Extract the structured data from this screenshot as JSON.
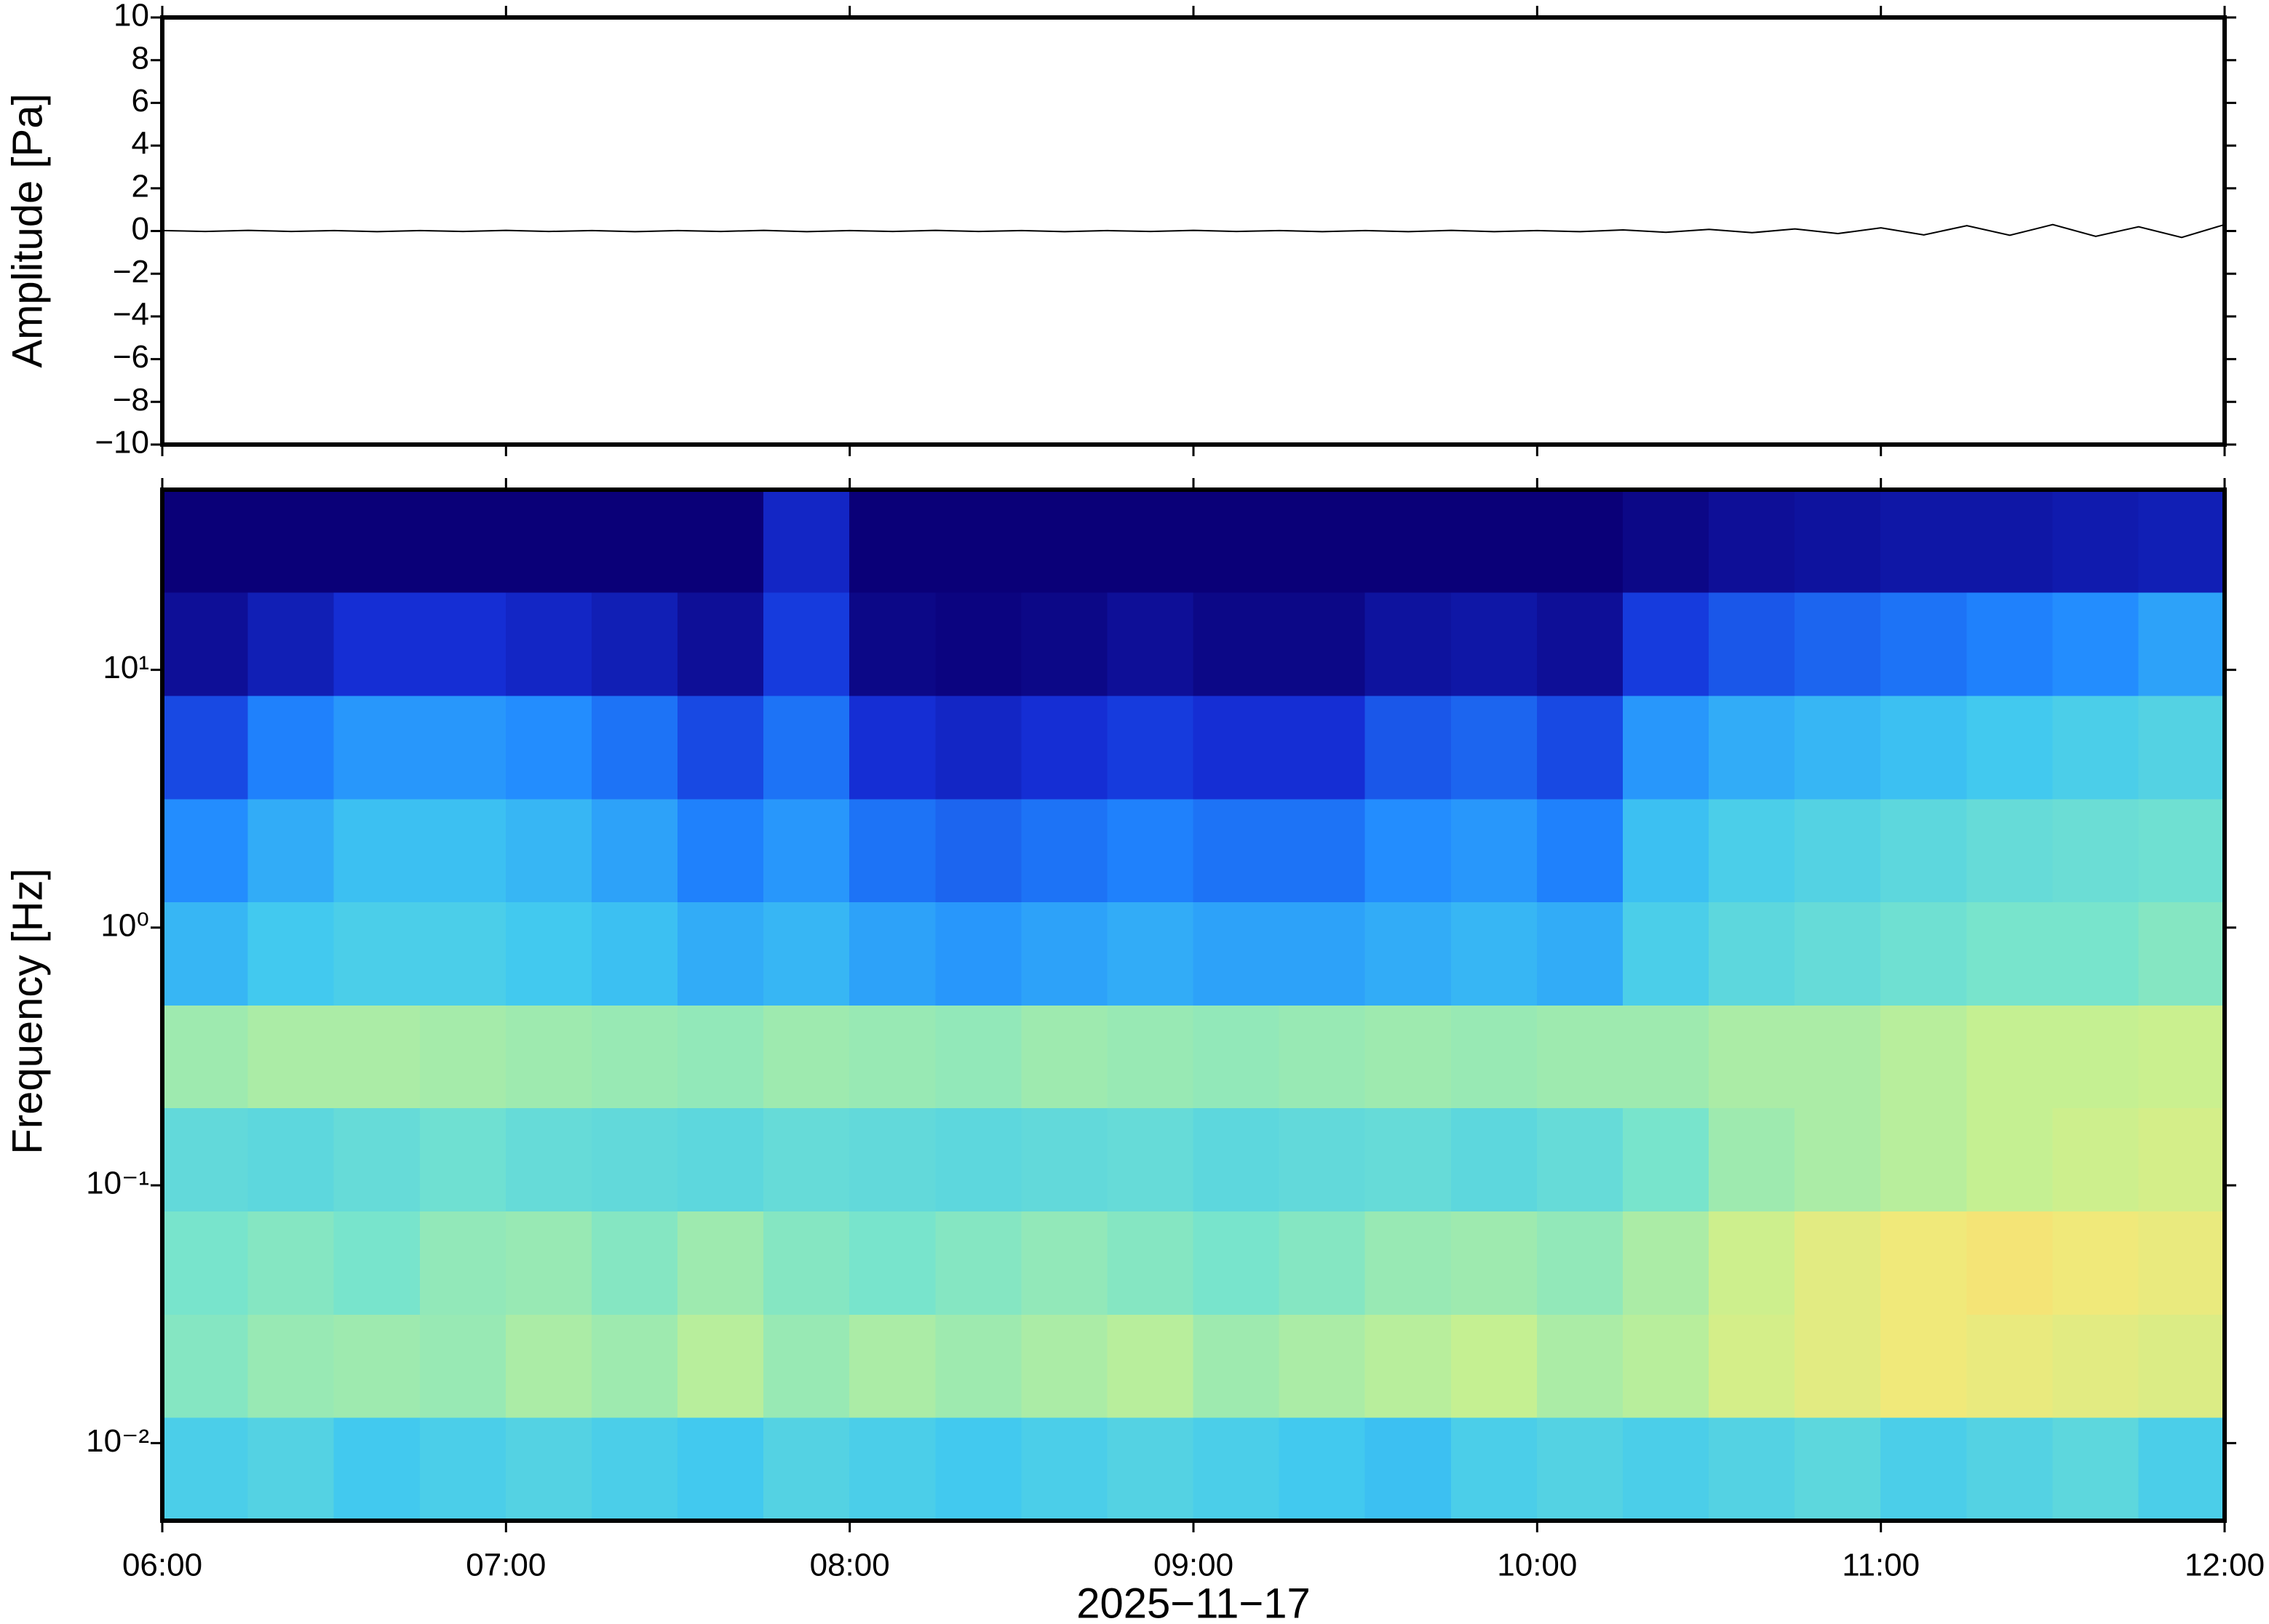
{
  "chart_data": [
    {
      "type": "line",
      "ylabel": "Amplitude [Pa]",
      "xlim": [
        6,
        12
      ],
      "ylim": [
        -10,
        10
      ],
      "yticks": [
        {
          "value": -10,
          "label": "−10"
        },
        {
          "value": -8,
          "label": "−8"
        },
        {
          "value": -6,
          "label": "−6"
        },
        {
          "value": -4,
          "label": "−4"
        },
        {
          "value": -2,
          "label": "−2"
        },
        0,
        2,
        4,
        6,
        8,
        10
      ],
      "color": "#000000",
      "x": [
        6,
        6.125,
        6.25,
        6.375,
        6.5,
        6.625,
        6.75,
        6.875,
        7,
        7.125,
        7.25,
        7.375,
        7.5,
        7.625,
        7.75,
        7.875,
        8,
        8.125,
        8.25,
        8.375,
        8.5,
        8.625,
        8.75,
        8.875,
        9,
        9.125,
        9.25,
        9.375,
        9.5,
        9.625,
        9.75,
        9.875,
        10,
        10.125,
        10.25,
        10.375,
        10.5,
        10.625,
        10.75,
        10.875,
        11,
        11.125,
        11.25,
        11.375,
        11.5,
        11.625,
        11.75,
        11.875,
        12
      ],
      "values": [
        0.02,
        -0.02,
        0.03,
        -0.02,
        0.02,
        -0.03,
        0.02,
        -0.02,
        0.03,
        -0.02,
        0.02,
        -0.03,
        0.02,
        -0.02,
        0.03,
        -0.03,
        0.02,
        -0.02,
        0.03,
        -0.02,
        0.02,
        -0.03,
        0.02,
        -0.02,
        0.03,
        -0.02,
        0.02,
        -0.03,
        0.02,
        -0.03,
        0.03,
        -0.03,
        0.02,
        -0.03,
        0.05,
        -0.06,
        0.08,
        -0.08,
        0.1,
        -0.12,
        0.15,
        -0.18,
        0.25,
        -0.2,
        0.3,
        -0.25,
        0.2,
        -0.3,
        0.3
      ]
    },
    {
      "type": "heatmap",
      "ylabel": "Frequency [Hz]",
      "xlabel": "2025−11−17",
      "xlim": [
        6,
        12
      ],
      "xticks": [
        {
          "value": 6,
          "label": "06:00"
        },
        {
          "value": 7,
          "label": "07:00"
        },
        {
          "value": 8,
          "label": "08:00"
        },
        {
          "value": 9,
          "label": "09:00"
        },
        {
          "value": 10,
          "label": "10:00"
        },
        {
          "value": 11,
          "label": "11:00"
        },
        {
          "value": 12,
          "label": "12:00"
        }
      ],
      "ylim": [
        0.005,
        50
      ],
      "log_y": true,
      "yticks": [
        {
          "value": 0.01,
          "label": "10⁻²"
        },
        {
          "value": 0.1,
          "label": "10⁻¹"
        },
        {
          "value": 1,
          "label": "10⁰"
        },
        {
          "value": 10,
          "label": "10¹"
        }
      ],
      "colors": [
        "#0a0078",
        "#1530d8",
        "#2088ff",
        "#40c8f0",
        "#78e4cc",
        "#c8f090",
        "#f4e878",
        "#f8bc60",
        "#f09850"
      ],
      "x_edges": [
        6,
        6.25,
        6.5,
        6.75,
        7,
        7.25,
        7.5,
        7.75,
        8,
        8.25,
        8.5,
        8.75,
        9,
        9.25,
        9.5,
        9.75,
        10,
        10.25,
        10.5,
        10.75,
        11,
        11.25,
        11.5,
        11.75,
        12
      ],
      "y_edges": [
        0.005,
        0.0126,
        0.0316,
        0.0794,
        0.2,
        0.5,
        1.26,
        3.16,
        7.94,
        20,
        50
      ],
      "z": [
        [
          0.4,
          0.42,
          0.38,
          0.4,
          0.42,
          0.4,
          0.38,
          0.42,
          0.4,
          0.38,
          0.4,
          0.42,
          0.4,
          0.38,
          0.36,
          0.4,
          0.42,
          0.4,
          0.42,
          0.44,
          0.4,
          0.42,
          0.44,
          0.4
        ],
        [
          0.52,
          0.55,
          0.56,
          0.55,
          0.58,
          0.56,
          0.6,
          0.55,
          0.58,
          0.56,
          0.58,
          0.6,
          0.56,
          0.58,
          0.6,
          0.62,
          0.58,
          0.6,
          0.66,
          0.7,
          0.74,
          0.72,
          0.7,
          0.68
        ],
        [
          0.5,
          0.52,
          0.5,
          0.54,
          0.55,
          0.52,
          0.56,
          0.52,
          0.5,
          0.52,
          0.54,
          0.52,
          0.5,
          0.52,
          0.55,
          0.56,
          0.54,
          0.58,
          0.64,
          0.7,
          0.74,
          0.76,
          0.74,
          0.72
        ],
        [
          0.45,
          0.44,
          0.46,
          0.48,
          0.46,
          0.45,
          0.44,
          0.46,
          0.45,
          0.44,
          0.45,
          0.46,
          0.44,
          0.45,
          0.46,
          0.44,
          0.46,
          0.5,
          0.56,
          0.58,
          0.6,
          0.62,
          0.64,
          0.66
        ],
        [
          0.56,
          0.58,
          0.58,
          0.57,
          0.56,
          0.55,
          0.54,
          0.56,
          0.55,
          0.54,
          0.56,
          0.55,
          0.54,
          0.55,
          0.56,
          0.55,
          0.56,
          0.56,
          0.58,
          0.58,
          0.6,
          0.62,
          0.62,
          0.63
        ],
        [
          0.34,
          0.38,
          0.4,
          0.4,
          0.38,
          0.36,
          0.32,
          0.34,
          0.3,
          0.28,
          0.3,
          0.32,
          0.3,
          0.3,
          0.32,
          0.34,
          0.32,
          0.4,
          0.44,
          0.46,
          0.48,
          0.5,
          0.5,
          0.52
        ],
        [
          0.26,
          0.32,
          0.36,
          0.36,
          0.34,
          0.3,
          0.24,
          0.28,
          0.22,
          0.2,
          0.22,
          0.24,
          0.22,
          0.22,
          0.26,
          0.28,
          0.24,
          0.36,
          0.4,
          0.42,
          0.44,
          0.46,
          0.47,
          0.48
        ],
        [
          0.16,
          0.24,
          0.28,
          0.28,
          0.26,
          0.22,
          0.16,
          0.22,
          0.12,
          0.1,
          0.12,
          0.14,
          0.12,
          0.12,
          0.18,
          0.2,
          0.16,
          0.28,
          0.32,
          0.34,
          0.36,
          0.38,
          0.4,
          0.42
        ],
        [
          0.04,
          0.08,
          0.12,
          0.12,
          0.1,
          0.08,
          0.04,
          0.14,
          0.02,
          0.01,
          0.02,
          0.04,
          0.02,
          0.02,
          0.05,
          0.06,
          0.04,
          0.14,
          0.18,
          0.2,
          0.22,
          0.24,
          0.26,
          0.3
        ],
        [
          0.0,
          0.0,
          0.0,
          0.0,
          0.0,
          0.0,
          0.0,
          0.1,
          0.0,
          0.0,
          0.0,
          0.0,
          0.0,
          0.0,
          0.0,
          0.0,
          0.0,
          0.02,
          0.04,
          0.05,
          0.06,
          0.06,
          0.07,
          0.08
        ]
      ]
    }
  ]
}
